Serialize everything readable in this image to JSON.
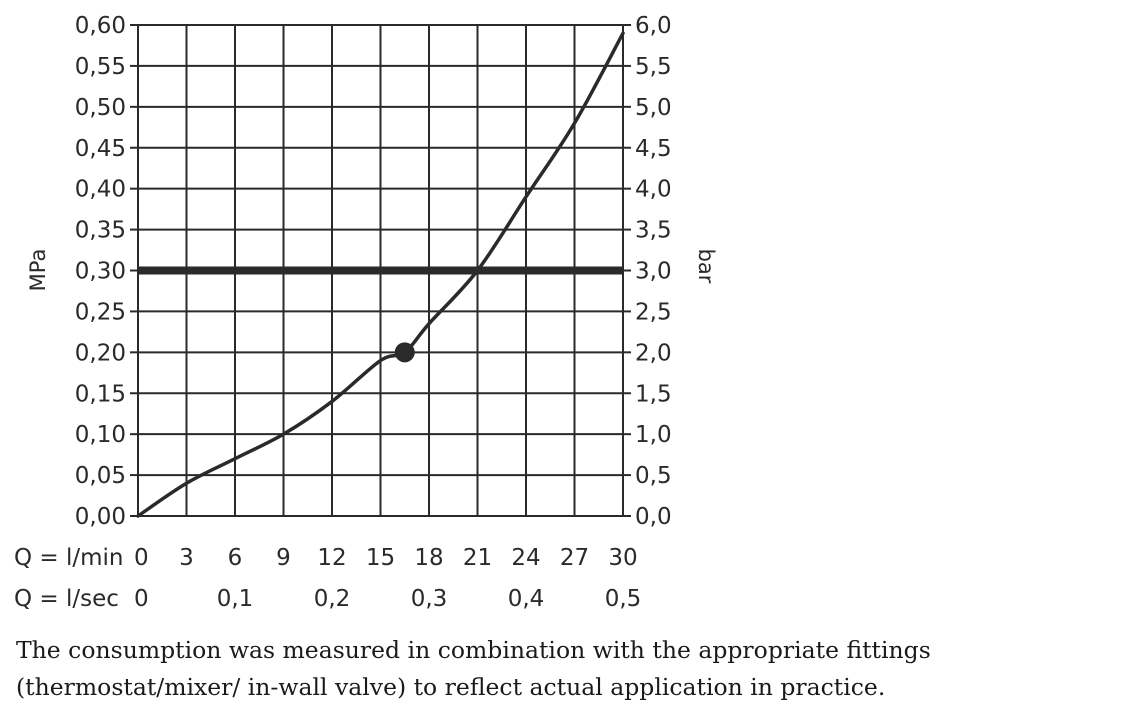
{
  "chart_data": {
    "type": "line",
    "x_label_flow_min": "Q = l/min",
    "x_label_flow_sec": "Q = l/sec",
    "y_left_label": "MPa",
    "y_right_label": "bar",
    "x_ticks_min": [
      "0",
      "3",
      "6",
      "9",
      "12",
      "15",
      "18",
      "21",
      "24",
      "27",
      "30"
    ],
    "x_ticks_sec": [
      "0",
      "0,1",
      "0,2",
      "0,3",
      "0,4",
      "0,5"
    ],
    "y_left_ticks": [
      "0,00",
      "0,05",
      "0,10",
      "0,15",
      "0,20",
      "0,25",
      "0,30",
      "0,35",
      "0,40",
      "0,45",
      "0,50",
      "0,55",
      "0,60"
    ],
    "y_right_ticks": [
      "0,0",
      "0,5",
      "1,0",
      "1,5",
      "2,0",
      "2,5",
      "3,0",
      "3,5",
      "4,0",
      "4,5",
      "5,0",
      "5,5",
      "6,0"
    ],
    "xlim": [
      0,
      30
    ],
    "ylim": [
      0,
      0.6
    ],
    "grid": true,
    "series": [
      {
        "x": [
          0,
          3,
          6,
          9,
          12,
          15,
          16.5,
          18,
          21,
          24,
          27,
          30
        ],
        "values": [
          0,
          0.04,
          0.07,
          0.1,
          0.14,
          0.19,
          0.2,
          0.235,
          0.3,
          0.39,
          0.48,
          0.59
        ]
      }
    ],
    "reference_line_y": 0.3,
    "reference_drop_x": 21,
    "marker_point": {
      "x": 16.5,
      "y": 0.2
    }
  },
  "caption": "The consumption was measured in combination with the appropriate fittings (thermostat/mixer/ in-wall valve) to reflect actual application in practice."
}
